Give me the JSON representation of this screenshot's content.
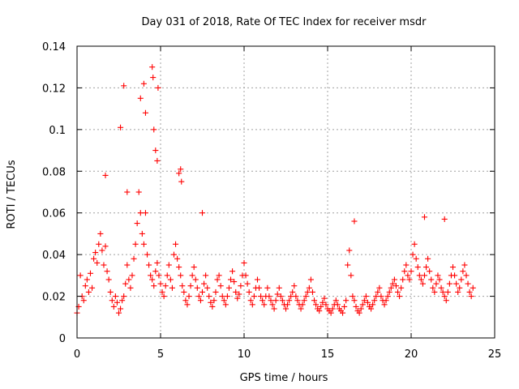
{
  "chart_data": {
    "type": "scatter",
    "title": "Day 031 of 2018, Rate Of TEC Index for receiver msdr",
    "xlabel": "GPS time / hours",
    "ylabel": "ROTI / TECUs",
    "xlim": [
      0,
      25
    ],
    "ylim": [
      0,
      0.14
    ],
    "xticks": [
      0,
      5,
      10,
      15,
      20,
      25
    ],
    "xtick_labels": [
      "0",
      "5",
      "10",
      "15",
      "20",
      "25"
    ],
    "yticks": [
      0,
      0.02,
      0.04,
      0.06,
      0.08,
      0.1,
      0.12,
      0.14
    ],
    "ytick_labels": [
      "0",
      "0.02",
      "0.04",
      "0.06",
      "0.08",
      "0.1",
      "0.12",
      "0.14"
    ],
    "grid": true,
    "legend": "none",
    "marker_color": "#ff0000",
    "series": [
      {
        "name": "ROTI",
        "marker": "plus",
        "x": [
          0.0,
          0.1,
          0.2,
          0.3,
          0.4,
          0.5,
          0.6,
          0.7,
          0.8,
          0.9,
          1.0,
          1.1,
          1.2,
          1.3,
          1.4,
          1.5,
          1.6,
          1.7,
          1.8,
          1.9,
          2.0,
          2.1,
          2.2,
          2.3,
          2.4,
          2.5,
          2.6,
          2.7,
          2.8,
          2.9,
          3.0,
          3.1,
          3.2,
          3.3,
          3.4,
          3.5,
          3.6,
          3.7,
          3.8,
          3.9,
          4.0,
          4.1,
          4.2,
          4.3,
          4.4,
          4.5,
          4.6,
          4.7,
          4.8,
          4.9,
          5.0,
          5.1,
          5.2,
          5.3,
          5.4,
          5.5,
          5.6,
          5.7,
          5.8,
          5.9,
          6.0,
          6.1,
          6.2,
          6.3,
          6.4,
          6.5,
          6.6,
          6.7,
          6.8,
          6.9,
          7.0,
          7.1,
          7.2,
          7.3,
          7.4,
          7.5,
          7.6,
          7.7,
          7.8,
          7.9,
          8.0,
          8.1,
          8.2,
          8.3,
          8.4,
          8.5,
          8.6,
          8.7,
          8.8,
          8.9,
          9.0,
          9.1,
          9.2,
          9.3,
          9.4,
          9.5,
          9.6,
          9.7,
          9.8,
          9.9,
          10.0,
          10.1,
          10.2,
          10.3,
          10.4,
          10.5,
          10.6,
          10.7,
          10.8,
          10.9,
          11.0,
          11.1,
          11.2,
          11.3,
          11.4,
          11.5,
          11.6,
          11.7,
          11.8,
          11.9,
          12.0,
          12.1,
          12.2,
          12.3,
          12.4,
          12.5,
          12.6,
          12.7,
          12.8,
          12.9,
          13.0,
          13.1,
          13.2,
          13.3,
          13.4,
          13.5,
          13.6,
          13.7,
          13.8,
          13.9,
          14.0,
          14.1,
          14.2,
          14.3,
          14.4,
          14.5,
          14.6,
          14.7,
          14.8,
          14.9,
          15.0,
          15.1,
          15.2,
          15.3,
          15.4,
          15.5,
          15.6,
          15.7,
          15.8,
          15.9,
          16.0,
          16.1,
          16.2,
          16.3,
          16.4,
          16.5,
          16.6,
          16.7,
          16.8,
          16.9,
          17.0,
          17.1,
          17.2,
          17.3,
          17.4,
          17.5,
          17.6,
          17.7,
          17.8,
          17.9,
          18.0,
          18.1,
          18.2,
          18.3,
          18.4,
          18.5,
          18.6,
          18.7,
          18.8,
          18.9,
          19.0,
          19.1,
          19.2,
          19.3,
          19.4,
          19.5,
          19.6,
          19.7,
          19.8,
          19.9,
          20.0,
          20.1,
          20.2,
          20.3,
          20.4,
          20.5,
          20.6,
          20.7,
          20.8,
          20.9,
          21.0,
          21.1,
          21.2,
          21.3,
          21.4,
          21.5,
          21.6,
          21.7,
          21.8,
          21.9,
          22.0,
          22.1,
          22.2,
          22.3,
          22.4,
          22.5,
          22.6,
          22.7,
          22.8,
          22.9,
          23.0,
          23.1,
          23.2,
          23.3,
          23.4,
          23.5,
          23.6,
          23.7,
          2.6,
          2.8,
          3.0,
          3.8,
          4.0,
          4.1,
          4.5,
          4.55,
          4.6,
          4.7,
          4.8,
          4.85,
          6.1,
          6.2,
          6.25,
          7.5,
          1.7,
          16.6,
          20.8,
          22.0
        ],
        "y": [
          0.012,
          0.015,
          0.03,
          0.02,
          0.018,
          0.025,
          0.028,
          0.022,
          0.031,
          0.024,
          0.038,
          0.041,
          0.036,
          0.045,
          0.05,
          0.042,
          0.035,
          0.044,
          0.032,
          0.028,
          0.022,
          0.018,
          0.015,
          0.02,
          0.017,
          0.012,
          0.014,
          0.018,
          0.02,
          0.026,
          0.035,
          0.028,
          0.024,
          0.03,
          0.038,
          0.045,
          0.055,
          0.07,
          0.06,
          0.05,
          0.045,
          0.06,
          0.04,
          0.035,
          0.03,
          0.028,
          0.025,
          0.032,
          0.036,
          0.03,
          0.026,
          0.022,
          0.02,
          0.025,
          0.03,
          0.035,
          0.028,
          0.024,
          0.04,
          0.045,
          0.038,
          0.034,
          0.03,
          0.025,
          0.022,
          0.018,
          0.016,
          0.02,
          0.025,
          0.03,
          0.034,
          0.028,
          0.024,
          0.02,
          0.018,
          0.022,
          0.026,
          0.03,
          0.024,
          0.02,
          0.017,
          0.015,
          0.018,
          0.022,
          0.028,
          0.03,
          0.025,
          0.02,
          0.018,
          0.016,
          0.02,
          0.024,
          0.028,
          0.032,
          0.027,
          0.022,
          0.019,
          0.021,
          0.025,
          0.03,
          0.036,
          0.03,
          0.026,
          0.022,
          0.018,
          0.016,
          0.02,
          0.024,
          0.028,
          0.024,
          0.02,
          0.018,
          0.016,
          0.02,
          0.024,
          0.02,
          0.018,
          0.016,
          0.014,
          0.018,
          0.021,
          0.024,
          0.02,
          0.018,
          0.016,
          0.014,
          0.016,
          0.018,
          0.02,
          0.022,
          0.025,
          0.02,
          0.018,
          0.016,
          0.014,
          0.016,
          0.018,
          0.02,
          0.022,
          0.024,
          0.028,
          0.022,
          0.018,
          0.016,
          0.014,
          0.013,
          0.015,
          0.017,
          0.019,
          0.016,
          0.014,
          0.013,
          0.012,
          0.014,
          0.016,
          0.018,
          0.016,
          0.014,
          0.013,
          0.012,
          0.015,
          0.018,
          0.035,
          0.042,
          0.03,
          0.02,
          0.018,
          0.015,
          0.013,
          0.012,
          0.014,
          0.016,
          0.018,
          0.02,
          0.017,
          0.015,
          0.014,
          0.016,
          0.018,
          0.02,
          0.022,
          0.024,
          0.02,
          0.018,
          0.016,
          0.018,
          0.02,
          0.022,
          0.024,
          0.026,
          0.028,
          0.025,
          0.022,
          0.02,
          0.024,
          0.028,
          0.032,
          0.035,
          0.03,
          0.028,
          0.032,
          0.04,
          0.045,
          0.038,
          0.034,
          0.03,
          0.028,
          0.026,
          0.03,
          0.034,
          0.038,
          0.032,
          0.028,
          0.024,
          0.022,
          0.026,
          0.03,
          0.028,
          0.024,
          0.022,
          0.02,
          0.018,
          0.022,
          0.026,
          0.03,
          0.034,
          0.03,
          0.026,
          0.022,
          0.024,
          0.028,
          0.032,
          0.035,
          0.03,
          0.026,
          0.022,
          0.02,
          0.024,
          0.101,
          0.121,
          0.07,
          0.115,
          0.122,
          0.108,
          0.13,
          0.125,
          0.1,
          0.09,
          0.085,
          0.12,
          0.079,
          0.081,
          0.075,
          0.06,
          0.078,
          0.056,
          0.058,
          0.057
        ]
      }
    ]
  }
}
